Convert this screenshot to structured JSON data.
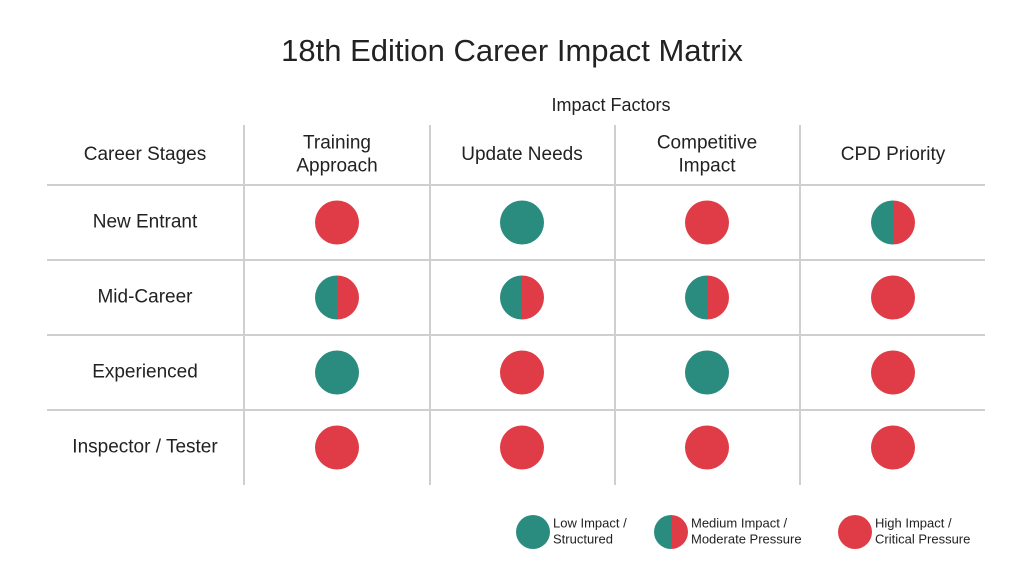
{
  "title": "18th Edition Career Impact Matrix",
  "table": {
    "group_header": "Impact Factors",
    "corner": "Career Stages",
    "columns": [
      [
        "Training",
        "Approach"
      ],
      [
        "Update Needs"
      ],
      [
        "Competitive",
        "Impact"
      ],
      [
        "CPD Priority"
      ]
    ],
    "rows": [
      {
        "label": "New Entrant",
        "cells": [
          2,
          0,
          2,
          1
        ]
      },
      {
        "label": "Mid-Career",
        "cells": [
          1,
          1,
          1,
          2
        ]
      },
      {
        "label": "Experienced",
        "cells": [
          0,
          2,
          0,
          2
        ]
      },
      {
        "label": "Inspector / Tester",
        "cells": [
          2,
          2,
          2,
          2
        ]
      }
    ]
  },
  "legend": [
    {
      "lines": [
        "Low Impact /",
        "Structured"
      ],
      "colors": [
        "#2a8c7f"
      ]
    },
    {
      "lines": [
        "Medium Impact /",
        "Moderate Pressure"
      ],
      "colors": [
        "#2a8c7f",
        "#e03c47"
      ]
    },
    {
      "lines": [
        "High Impact /",
        "Critical Pressure"
      ],
      "colors": [
        "#e03c47"
      ]
    }
  ]
}
